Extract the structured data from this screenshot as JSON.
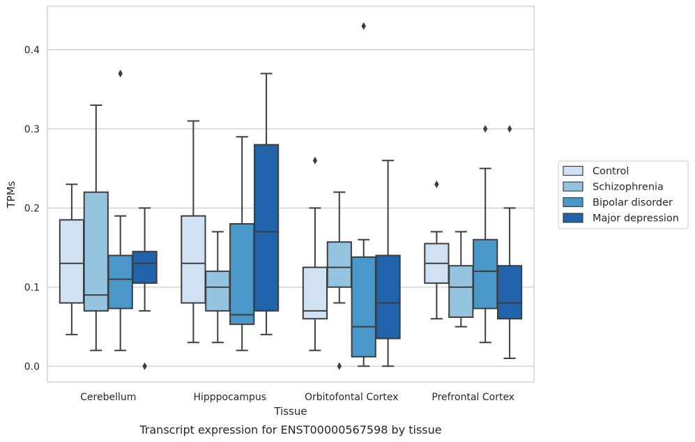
{
  "chart_data": {
    "type": "box",
    "xlabel": "Tissue",
    "ylabel": "TPMs",
    "caption": "Transcript expression for ENST00000567598 by tissue",
    "ylim": [
      -0.02,
      0.455
    ],
    "yticks": [
      0.0,
      0.1,
      0.2,
      0.3,
      0.4
    ],
    "ytick_labels": [
      "0.0",
      "0.1",
      "0.2",
      "0.3",
      "0.4"
    ],
    "grid": "horizontal",
    "legend_position": "right",
    "categories": [
      "Cerebellum",
      "Hipppocampus",
      "Orbitofontal Cortex",
      "Prefrontal Cortex"
    ],
    "series": [
      {
        "name": "Control",
        "color": "#d0e1f2",
        "boxes": [
          {
            "whisker_low": 0.04,
            "q1": 0.08,
            "median": 0.13,
            "q3": 0.185,
            "whisker_high": 0.23,
            "outliers": []
          },
          {
            "whisker_low": 0.03,
            "q1": 0.08,
            "median": 0.13,
            "q3": 0.19,
            "whisker_high": 0.31,
            "outliers": []
          },
          {
            "whisker_low": 0.02,
            "q1": 0.06,
            "median": 0.07,
            "q3": 0.125,
            "whisker_high": 0.2,
            "outliers": [
              0.26
            ]
          },
          {
            "whisker_low": 0.06,
            "q1": 0.105,
            "median": 0.13,
            "q3": 0.155,
            "whisker_high": 0.17,
            "outliers": [
              0.23
            ]
          }
        ]
      },
      {
        "name": "Schizophrenia",
        "color": "#94c4df",
        "boxes": [
          {
            "whisker_low": 0.02,
            "q1": 0.07,
            "median": 0.09,
            "q3": 0.22,
            "whisker_high": 0.33,
            "outliers": []
          },
          {
            "whisker_low": 0.03,
            "q1": 0.07,
            "median": 0.1,
            "q3": 0.12,
            "whisker_high": 0.17,
            "outliers": []
          },
          {
            "whisker_low": 0.08,
            "q1": 0.1,
            "median": 0.125,
            "q3": 0.157,
            "whisker_high": 0.22,
            "outliers": [
              0.0
            ]
          },
          {
            "whisker_low": 0.05,
            "q1": 0.062,
            "median": 0.1,
            "q3": 0.127,
            "whisker_high": 0.17,
            "outliers": []
          }
        ]
      },
      {
        "name": "Bipolar disorder",
        "color": "#4a98c9",
        "boxes": [
          {
            "whisker_low": 0.02,
            "q1": 0.073,
            "median": 0.11,
            "q3": 0.14,
            "whisker_high": 0.19,
            "outliers": [
              0.37
            ]
          },
          {
            "whisker_low": 0.02,
            "q1": 0.053,
            "median": 0.065,
            "q3": 0.18,
            "whisker_high": 0.29,
            "outliers": []
          },
          {
            "whisker_low": 0.0,
            "q1": 0.012,
            "median": 0.05,
            "q3": 0.138,
            "whisker_high": 0.16,
            "outliers": [
              0.43
            ]
          },
          {
            "whisker_low": 0.03,
            "q1": 0.073,
            "median": 0.12,
            "q3": 0.16,
            "whisker_high": 0.25,
            "outliers": [
              0.3
            ]
          }
        ]
      },
      {
        "name": "Major depression",
        "color": "#2163aa",
        "boxes": [
          {
            "whisker_low": 0.07,
            "q1": 0.105,
            "median": 0.13,
            "q3": 0.145,
            "whisker_high": 0.2,
            "outliers": [
              0.0
            ]
          },
          {
            "whisker_low": 0.04,
            "q1": 0.07,
            "median": 0.17,
            "q3": 0.28,
            "whisker_high": 0.37,
            "outliers": []
          },
          {
            "whisker_low": 0.0,
            "q1": 0.035,
            "median": 0.08,
            "q3": 0.14,
            "whisker_high": 0.26,
            "outliers": []
          },
          {
            "whisker_low": 0.01,
            "q1": 0.06,
            "median": 0.08,
            "q3": 0.127,
            "whisker_high": 0.2,
            "outliers": [
              0.3
            ]
          }
        ]
      }
    ]
  }
}
